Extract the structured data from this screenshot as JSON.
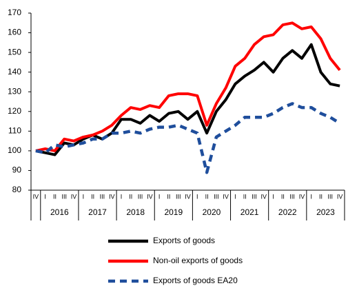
{
  "chart_data": {
    "type": "line",
    "categories": [
      "IV",
      "I",
      "II",
      "III",
      "IV",
      "I",
      "II",
      "III",
      "IV",
      "I",
      "II",
      "III",
      "IV",
      "I",
      "II",
      "III",
      "IV",
      "I",
      "II",
      "III",
      "IV",
      "I",
      "II",
      "III",
      "IV",
      "I",
      "II",
      "III",
      "IV",
      "I",
      "II",
      "III",
      "IV"
    ],
    "year_labels": [
      "2016",
      "2017",
      "2018",
      "2019",
      "2020",
      "2021",
      "2022",
      "2023"
    ],
    "ylim": [
      80,
      170
    ],
    "yticks": [
      80,
      90,
      100,
      110,
      120,
      130,
      140,
      150,
      160,
      170
    ],
    "grid": false,
    "legend": "bottom",
    "series": [
      {
        "name": "Exports of goods",
        "color": "#000000",
        "style": "solid",
        "values": [
          100,
          99,
          98,
          104,
          103,
          106,
          108,
          106,
          109,
          116,
          116,
          114,
          118,
          115,
          119,
          120,
          116,
          120,
          109,
          120,
          126,
          134,
          138,
          141,
          145,
          140,
          147,
          151,
          147,
          154,
          140,
          134,
          133
        ]
      },
      {
        "name": "Non-oil exports of goods",
        "color": "#ff0000",
        "style": "solid",
        "values": [
          100,
          101,
          100,
          106,
          105,
          107,
          108,
          110,
          113,
          118,
          122,
          121,
          123,
          122,
          128,
          129,
          129,
          128,
          113,
          124,
          132,
          143,
          147,
          154,
          158,
          159,
          164,
          165,
          162,
          163,
          157,
          147,
          141
        ]
      },
      {
        "name": "Exports of goods EA20",
        "color": "#1f4e9c",
        "style": "dashed",
        "values": [
          100,
          99,
          103,
          102,
          103,
          104,
          106,
          106,
          109,
          109,
          110,
          109,
          111,
          112,
          112,
          113,
          111,
          109,
          89,
          107,
          110,
          113,
          117,
          117,
          117,
          119,
          122,
          124,
          122,
          122,
          119,
          117,
          114
        ]
      }
    ]
  }
}
